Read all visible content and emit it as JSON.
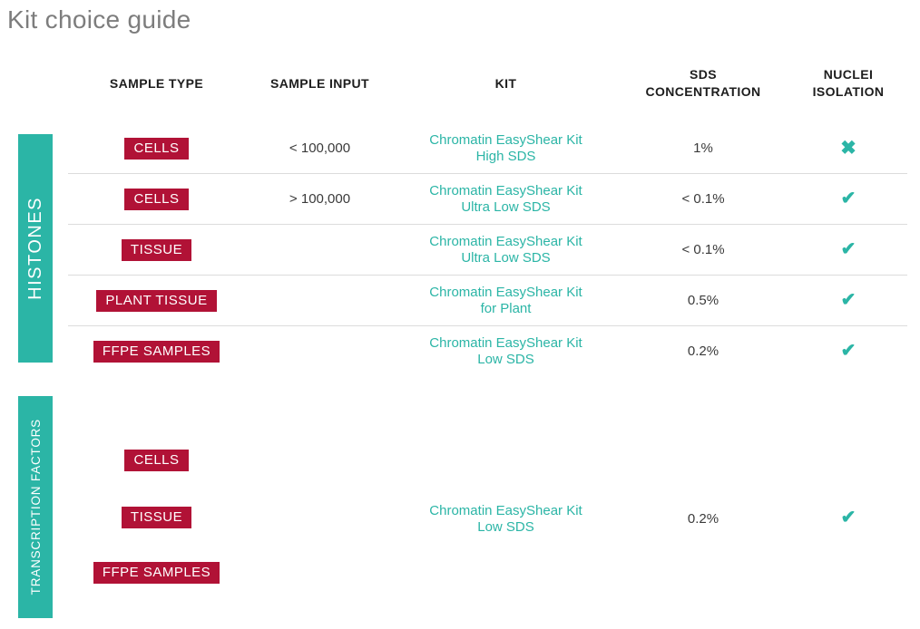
{
  "title": "Kit choice guide",
  "colors": {
    "teal": "#2bb5a6",
    "crimson": "#b11236",
    "title_gray": "#7d7d7d",
    "separator": "#dcdcdc"
  },
  "icons": {
    "check": "✔",
    "cross": "✖"
  },
  "headers": {
    "sample_type": "SAMPLE TYPE",
    "sample_input": "SAMPLE INPUT",
    "kit": "KIT",
    "sds_concentration": "SDS CONCENTRATION",
    "nuclei_isolation": "NUCLEI ISOLATION"
  },
  "sections": {
    "histones": {
      "label": "HISTONES",
      "rows": [
        {
          "sample_type": "CELLS",
          "sample_input": "< 100,000",
          "kit_line1": "Chromatin EasyShear Kit",
          "kit_line2": "High SDS",
          "sds": "1%",
          "nuclei_isolation": "cross"
        },
        {
          "sample_type": "CELLS",
          "sample_input": "> 100,000",
          "kit_line1": "Chromatin EasyShear Kit",
          "kit_line2": "Ultra Low SDS",
          "sds": "< 0.1%",
          "nuclei_isolation": "check"
        },
        {
          "sample_type": "TISSUE",
          "sample_input": "",
          "kit_line1": "Chromatin EasyShear Kit",
          "kit_line2": "Ultra Low SDS",
          "sds": "< 0.1%",
          "nuclei_isolation": "check"
        },
        {
          "sample_type": "PLANT TISSUE",
          "sample_input": "",
          "kit_line1": "Chromatin EasyShear Kit",
          "kit_line2": "for Plant",
          "sds": "0.5%",
          "nuclei_isolation": "check"
        },
        {
          "sample_type": "FFPE SAMPLES",
          "sample_input": "",
          "kit_line1": "Chromatin EasyShear Kit",
          "kit_line2": "Low SDS",
          "sds": "0.2%",
          "nuclei_isolation": "check"
        }
      ]
    },
    "transcription_factors": {
      "label": "TRANSCRIPTION FACTORS",
      "sample_types": [
        "CELLS",
        "TISSUE",
        "FFPE SAMPLES"
      ],
      "kit_line1": "Chromatin EasyShear Kit",
      "kit_line2": "Low SDS",
      "sds": "0.2%",
      "nuclei_isolation": "check"
    }
  }
}
